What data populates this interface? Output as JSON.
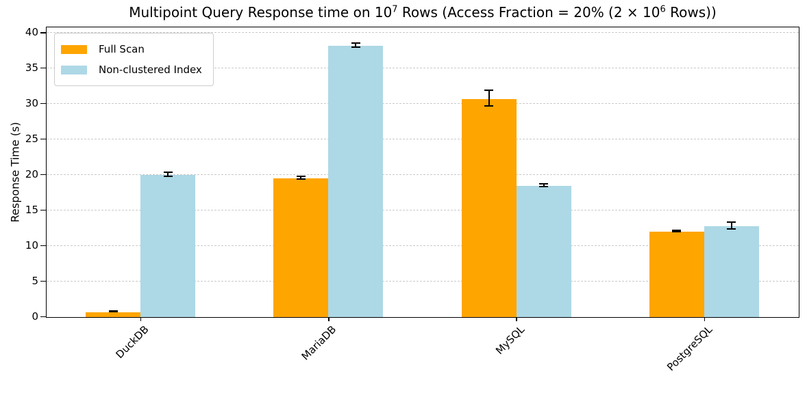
{
  "figure": {
    "title_segments": [
      {
        "text": "Multipoint Query Response time on 10"
      },
      {
        "sup": "7"
      },
      {
        "text": " Rows (Access Fraction = 20% (2 × 10"
      },
      {
        "sup": "6"
      },
      {
        "text": " Rows))"
      }
    ]
  },
  "chart_data": {
    "type": "bar",
    "title": "Multipoint Query Response time on 10⁷ Rows (Access Fraction = 20% (2 × 10⁶ Rows))",
    "xlabel": "",
    "ylabel": "Response Time (s)",
    "categories": [
      "DuckDB",
      "MariaDB",
      "MySQL",
      "PostgreSQL"
    ],
    "series": [
      {
        "name": "Full Scan",
        "color": "#FFA500",
        "values": [
          0.7,
          19.5,
          30.7,
          12.0
        ],
        "errors": [
          0.05,
          0.2,
          1.1,
          0.1
        ]
      },
      {
        "name": "Non-clustered Index",
        "color": "#ADD8E6",
        "values": [
          20.0,
          38.2,
          18.5,
          12.8
        ],
        "errors": [
          0.3,
          0.3,
          0.2,
          0.45
        ]
      }
    ],
    "yticks": [
      0,
      5,
      10,
      15,
      20,
      25,
      30,
      35,
      40
    ],
    "ylim": [
      0,
      40.7
    ],
    "grid": "horizontal-dashed",
    "grid_color": "#c9c9c9",
    "legend_position": "upper-left",
    "error_bar_color": "#000000",
    "x_tick_rotation_deg": 45
  }
}
